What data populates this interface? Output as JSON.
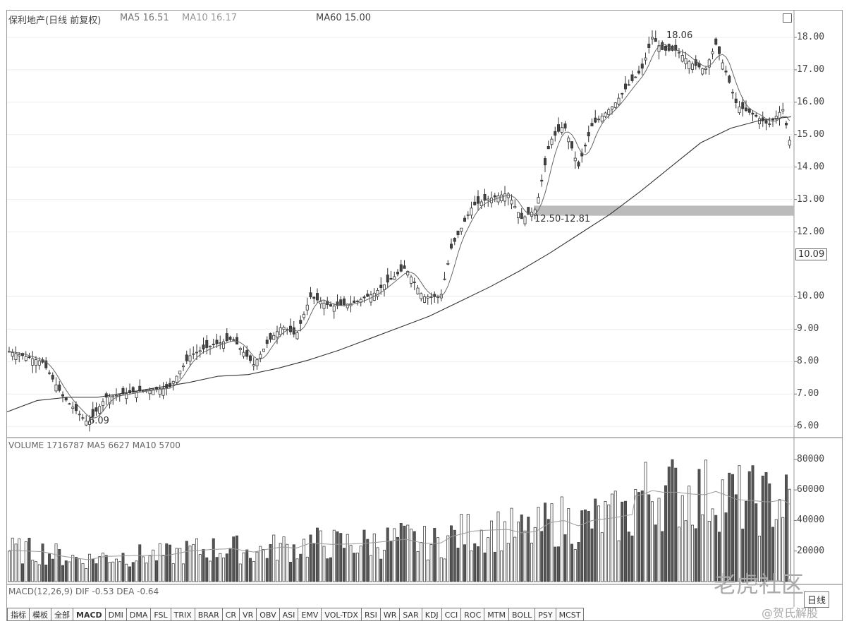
{
  "header": {
    "stock_title": "保利地产(日线 前复权)",
    "ma5_text": "MA5  16.51",
    "ma10_text": "MA10  16.17",
    "ma60_text": "MA60  15.00"
  },
  "volume_header": "VOLUME  1716787  MA5  6627  MA10  5700",
  "macd_header": "MACD(12,26,9)  DIF  -0.53  DEA  -0.64",
  "annotations": {
    "high_label": "18.06",
    "low_label": "6.09",
    "band_label": "12.50-12.81",
    "current_price": "10.09"
  },
  "price_axis": [
    "18.00",
    "17.00",
    "16.00",
    "15.00",
    "14.00",
    "13.00",
    "12.00",
    "10.00",
    "9.00",
    "8.00",
    "7.00",
    "6.00"
  ],
  "volume_axis": [
    "80000",
    "60000",
    "40000",
    "20000"
  ],
  "tabs": [
    "指标",
    "模板",
    "全部",
    "MACD",
    "DMI",
    "DMA",
    "FSL",
    "TRIX",
    "BRAR",
    "CR",
    "VR",
    "OBV",
    "ASI",
    "EMV",
    "VOL-TDX",
    "RSI",
    "WR",
    "SAR",
    "KDJ",
    "CCI",
    "ROC",
    "MTM",
    "BOLL",
    "PSY",
    "MCST"
  ],
  "period_button": "日线",
  "watermark": {
    "main": "老虎社区",
    "sub": "@贺氏解股"
  },
  "chart_data": {
    "type": "candlestick",
    "price_range": [
      5.7,
      18.5
    ],
    "volume_range": [
      0,
      85000
    ],
    "ma60_line": [
      6.45,
      6.8,
      6.9,
      6.9,
      7.05,
      7.2,
      7.35,
      7.55,
      7.6,
      7.8,
      8.05,
      8.35,
      8.7,
      9.05,
      9.4,
      9.85,
      10.3,
      10.8,
      11.35,
      11.95,
      12.55,
      13.25,
      14.0,
      14.75,
      15.2,
      15.45,
      15.55
    ],
    "resistance_band": [
      12.5,
      12.81
    ],
    "high": 18.06,
    "low": 6.09,
    "grid": true
  }
}
